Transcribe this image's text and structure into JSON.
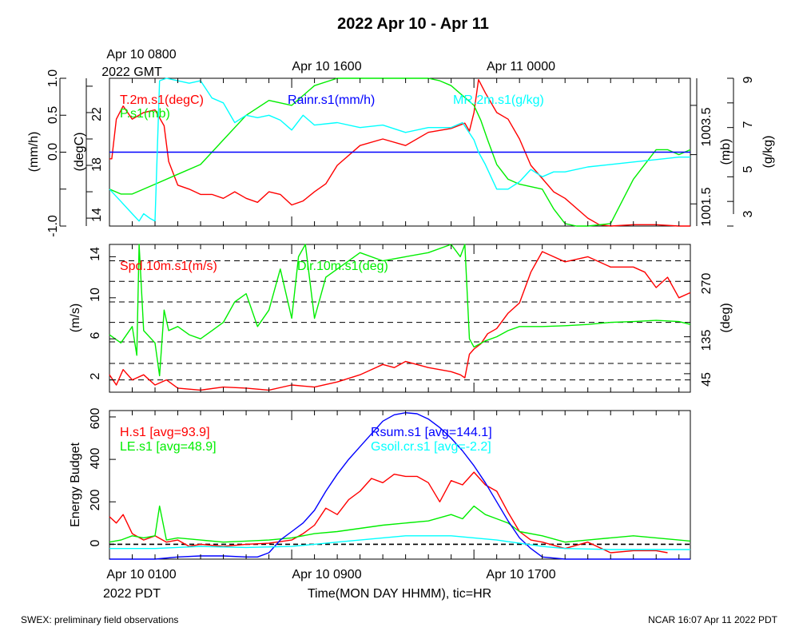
{
  "title": "2022 Apr 10 - Apr 11",
  "footer": {
    "left": "SWEX: preliminary field observations",
    "right": "NCAR 16:07 Apr 11 2022 PDT"
  },
  "gmt_axis": {
    "labels": [
      "Apr 10 0800",
      "Apr 10 1600",
      "Apr 11 0000"
    ],
    "origin_label": "2022 GMT"
  },
  "time_axis": {
    "labels": [
      "Apr 10 0100",
      "Apr 10 0900",
      "Apr 10 1700"
    ],
    "origin_label": "2022 PDT",
    "xlabel": "Time(MON DAY HHMM), tic=HR",
    "x_range_hours": [
      0,
      25.5
    ],
    "major_ticks_hours": [
      0,
      8,
      16
    ],
    "minor_tick_step_hours": 1
  },
  "colors": {
    "red": "#ff0000",
    "green": "#00ee00",
    "cyan": "#00ffff",
    "blue": "#0000ff",
    "black": "#000000"
  },
  "chart_data": [
    {
      "type": "line",
      "panel": "top",
      "xlim": [
        0,
        25.5
      ],
      "axes": {
        "rain": {
          "label": "(mm/h)",
          "side": "left-outer",
          "ylim": [
            -1.0,
            1.0
          ],
          "ticks": [
            "-1.0",
            "0.0",
            "0.5",
            "1.0"
          ]
        },
        "temp": {
          "label": "(degC)",
          "side": "left-inner",
          "ylim": [
            13.4,
            24.6
          ],
          "ticks": [
            "14",
            "18",
            "22"
          ]
        },
        "pres": {
          "label": "(mb)",
          "side": "right-inner",
          "ylim": [
            1001.05,
            1004.05
          ],
          "ticks": [
            "1001.5",
            "1003.5"
          ]
        },
        "mr": {
          "label": "(g/kg)",
          "side": "right-outer",
          "ylim": [
            3.0,
            9.0
          ],
          "ticks": [
            "3",
            "5",
            "7",
            "9"
          ]
        }
      },
      "legend": [
        "T.2m.s1(degC)",
        "P.s1(mb)",
        "Rainr.s1(mm/h)",
        "MR.2m.s1(g/kg)"
      ],
      "series": [
        {
          "name": "T.2m.s1(degC)",
          "color": "red",
          "axis": "temp",
          "x": [
            0,
            0.1,
            0.3,
            0.6,
            1.0,
            1.5,
            2.0,
            2.4,
            2.6,
            3.0,
            3.5,
            4.0,
            4.5,
            5.0,
            5.5,
            6.0,
            6.5,
            7.0,
            7.5,
            8.0,
            8.5,
            9.0,
            9.5,
            10.0,
            11.0,
            12.0,
            13.0,
            14.0,
            15.0,
            15.6,
            15.8,
            16.0,
            16.2,
            16.5,
            17.0,
            17.5,
            18.0,
            18.5,
            19.0,
            19.5,
            20.0,
            21.0,
            21.5,
            22.0,
            23.0,
            24.0,
            25.0,
            25.5
          ],
          "y": [
            18.5,
            18.5,
            21.5,
            22.5,
            21.5,
            22.0,
            22.2,
            21.0,
            18.3,
            16.5,
            16.2,
            15.8,
            15.8,
            15.5,
            16.0,
            15.5,
            15.2,
            16.0,
            15.8,
            15.0,
            15.3,
            16.0,
            16.6,
            18.0,
            19.5,
            20.0,
            19.5,
            20.5,
            20.8,
            21.2,
            20.6,
            22.0,
            24.5,
            23.5,
            22.0,
            21.5,
            20.0,
            18.0,
            17.0,
            16.0,
            15.5,
            14.0,
            13.5,
            13.4,
            13.5,
            13.5,
            13.4,
            13.4
          ]
        },
        {
          "name": "P.s1(mb)",
          "color": "green",
          "axis": "pres",
          "x": [
            0,
            0.5,
            1.0,
            2.0,
            3.0,
            4.0,
            5.0,
            6.0,
            7.0,
            8.0,
            9.0,
            10.0,
            11.0,
            11.5,
            12.0,
            12.5,
            13.0,
            14.0,
            14.5,
            15.0,
            15.5,
            16.0,
            16.3,
            16.6,
            17.0,
            17.5,
            18.0,
            19.0,
            19.5,
            20.0,
            20.5,
            21.0,
            22.0,
            23.0,
            24.0,
            24.5,
            25.0,
            25.5
          ],
          "y": [
            1001.8,
            1001.7,
            1001.7,
            1001.9,
            1002.1,
            1002.3,
            1002.8,
            1003.3,
            1003.6,
            1003.5,
            1003.9,
            1004.2,
            1004.6,
            1005.0,
            1004.7,
            1004.8,
            1004.5,
            1004.2,
            1004.0,
            1003.9,
            1003.7,
            1003.5,
            1003.2,
            1002.8,
            1002.3,
            1002.0,
            1001.9,
            1001.8,
            1001.4,
            1001.1,
            1001.0,
            1000.9,
            1001.1,
            1002.0,
            1002.6,
            1002.6,
            1002.5,
            1002.6
          ]
        },
        {
          "name": "Rainr.s1(mm/h)",
          "color": "blue",
          "axis": "rain",
          "x": [
            0,
            25.5
          ],
          "y": [
            0,
            0
          ]
        },
        {
          "name": "MR.2m.s1(g/kg)",
          "color": "cyan",
          "axis": "mr",
          "x": [
            0,
            0.5,
            1.0,
            1.3,
            1.5,
            1.8,
            2.0,
            2.2,
            2.5,
            3.0,
            3.5,
            4.0,
            4.5,
            5.0,
            5.5,
            6.0,
            6.5,
            7.0,
            7.5,
            8.0,
            8.5,
            9.0,
            10.0,
            11.0,
            12.0,
            13.0,
            14.0,
            15.0,
            15.5,
            16.0,
            16.2,
            16.5,
            17.0,
            17.5,
            18.0,
            18.5,
            19.0,
            19.5,
            20.0,
            21.0,
            22.0,
            23.0,
            24.0,
            25.0,
            25.5
          ],
          "y": [
            4.5,
            4.0,
            3.5,
            3.2,
            3.5,
            3.3,
            3.2,
            8.9,
            9.0,
            8.9,
            8.8,
            8.9,
            8.2,
            8.0,
            7.2,
            7.5,
            7.4,
            7.5,
            7.3,
            6.9,
            7.5,
            7.1,
            7.2,
            7.0,
            7.1,
            6.8,
            7.0,
            7.0,
            7.2,
            6.5,
            6.0,
            5.5,
            4.5,
            4.5,
            4.8,
            5.3,
            5.0,
            5.2,
            5.2,
            5.4,
            5.5,
            5.6,
            5.7,
            5.8,
            5.8
          ]
        }
      ]
    },
    {
      "type": "line",
      "panel": "middle",
      "xlim": [
        0,
        25.5
      ],
      "axes": {
        "spd": {
          "label": "(m/s)",
          "side": "left",
          "ylim": [
            0.8,
            15.2
          ],
          "ticks": [
            "2",
            "6",
            "10",
            "14"
          ]
        },
        "dir": {
          "label": "(deg)",
          "side": "right",
          "ylim": [
            0,
            360
          ],
          "ticks": [
            "45",
            "135",
            "270"
          ]
        }
      },
      "grid_y_spd": [
        2.0,
        3.6,
        5.7,
        7.6,
        9.6,
        11.6,
        13.6
      ],
      "legend": [
        "Spd.10m.s1(m/s)",
        "Dir.10m.s1(deg)"
      ],
      "series": [
        {
          "name": "Spd.10m.s1(m/s)",
          "color": "red",
          "axis": "spd",
          "x": [
            0,
            0.3,
            0.6,
            1.0,
            1.5,
            2.0,
            2.5,
            3.0,
            4.0,
            5.0,
            6.0,
            7.0,
            8.0,
            9.0,
            10.0,
            11.0,
            11.5,
            12.0,
            12.5,
            13.0,
            14.0,
            15.0,
            15.4,
            15.6,
            15.8,
            16.0,
            16.3,
            16.6,
            17.0,
            17.5,
            18.0,
            18.5,
            19.0,
            19.5,
            20.0,
            21.0,
            22.0,
            23.0,
            23.5,
            24.0,
            24.5,
            25.0,
            25.5
          ],
          "y": [
            2.5,
            1.5,
            3.0,
            2.0,
            2.5,
            1.5,
            2.0,
            1.2,
            1.0,
            1.3,
            1.2,
            1.0,
            1.5,
            1.3,
            1.8,
            2.5,
            3.0,
            3.5,
            3.2,
            3.8,
            3.2,
            2.8,
            2.5,
            2.2,
            4.5,
            5.0,
            5.5,
            6.5,
            7.0,
            8.5,
            9.5,
            12.5,
            14.5,
            14.0,
            13.5,
            14.0,
            13.0,
            13.0,
            12.5,
            11.0,
            12.0,
            10.0,
            10.5
          ]
        },
        {
          "name": "Dir.10m.s1(deg)",
          "color": "green",
          "axis": "dir",
          "x": [
            0,
            0.5,
            1.0,
            1.2,
            1.3,
            1.5,
            2.0,
            2.2,
            2.4,
            2.6,
            3.0,
            3.5,
            4.0,
            4.5,
            5.0,
            5.5,
            6.0,
            6.5,
            7.0,
            7.5,
            8.0,
            8.3,
            8.6,
            9.0,
            9.5,
            10.0,
            10.5,
            11.0,
            12.0,
            13.0,
            14.0,
            15.0,
            15.4,
            15.6,
            15.8,
            16.0,
            16.5,
            17.0,
            17.5,
            18.0,
            19.0,
            20.0,
            21.0,
            22.0,
            23.0,
            24.0,
            25.0,
            25.5
          ],
          "y": [
            140,
            120,
            160,
            90,
            360,
            150,
            120,
            40,
            200,
            150,
            160,
            140,
            130,
            150,
            170,
            220,
            240,
            160,
            200,
            300,
            180,
            330,
            360,
            180,
            280,
            300,
            320,
            340,
            320,
            330,
            340,
            360,
            330,
            360,
            130,
            110,
            125,
            135,
            150,
            160,
            160,
            162,
            165,
            170,
            172,
            175,
            172,
            165
          ]
        }
      ]
    },
    {
      "type": "line",
      "panel": "bottom",
      "xlim": [
        0,
        25.5
      ],
      "ylabel": "Energy Budget",
      "ylim": [
        -70,
        630
      ],
      "yticks": [
        0,
        200,
        400,
        600
      ],
      "legend": [
        "H.s1 [avg=93.9]",
        "LE.s1 [avg=48.9]",
        "Rsum.s1 [avg=144.1]",
        "Gsoil.cr.s1 [avg=-2.2]"
      ],
      "series": [
        {
          "name": "H.s1 [avg=93.9]",
          "color": "red",
          "x": [
            0,
            0.3,
            0.6,
            1.0,
            1.5,
            2.0,
            2.5,
            3.0,
            3.5,
            4.0,
            5.0,
            6.0,
            7.0,
            8.0,
            8.5,
            9.0,
            9.5,
            10.0,
            10.5,
            11.0,
            11.5,
            12.0,
            12.5,
            13.0,
            13.5,
            14.0,
            14.5,
            15.0,
            15.5,
            16.0,
            16.5,
            17.0,
            17.5,
            18.0,
            18.5,
            19.0,
            20.0,
            21.0,
            22.0,
            23.0,
            24.0,
            24.5
          ],
          "y": [
            130,
            100,
            140,
            50,
            20,
            40,
            10,
            20,
            -10,
            0,
            -10,
            0,
            5,
            20,
            50,
            90,
            170,
            140,
            210,
            250,
            310,
            290,
            330,
            320,
            320,
            290,
            200,
            300,
            280,
            340,
            280,
            250,
            150,
            60,
            20,
            10,
            -20,
            10,
            -40,
            -30,
            -30,
            -40
          ]
        },
        {
          "name": "LE.s1 [avg=48.9]",
          "color": "green",
          "x": [
            0,
            0.5,
            1.0,
            1.5,
            2.0,
            2.2,
            2.5,
            3.0,
            4.0,
            5.0,
            6.0,
            7.0,
            8.0,
            9.0,
            10.0,
            11.0,
            12.0,
            13.0,
            14.0,
            15.0,
            15.5,
            16.0,
            16.5,
            17.0,
            17.5,
            18.0,
            19.0,
            20.0,
            21.0,
            22.0,
            23.0,
            24.0,
            25.0,
            25.5
          ],
          "y": [
            10,
            20,
            40,
            30,
            40,
            180,
            20,
            30,
            20,
            10,
            15,
            20,
            30,
            50,
            60,
            75,
            90,
            100,
            110,
            140,
            120,
            180,
            140,
            120,
            100,
            60,
            40,
            10,
            20,
            30,
            40,
            30,
            20,
            15
          ]
        },
        {
          "name": "Rsum.s1 [avg=144.1]",
          "color": "blue",
          "x": [
            0,
            1.0,
            2.0,
            3.0,
            4.0,
            5.0,
            6.0,
            6.5,
            7.0,
            7.5,
            8.0,
            8.5,
            9.0,
            9.5,
            10.0,
            10.5,
            11.0,
            11.5,
            12.0,
            12.5,
            13.0,
            13.5,
            14.0,
            14.5,
            15.0,
            15.5,
            16.0,
            16.5,
            17.0,
            17.5,
            18.0,
            18.5,
            19.0,
            20.0,
            21.0,
            22.0,
            23.0,
            24.0,
            25.0,
            25.5
          ],
          "y": [
            -80,
            -80,
            -75,
            -60,
            -55,
            -55,
            -60,
            -60,
            -40,
            20,
            60,
            100,
            160,
            250,
            330,
            400,
            460,
            520,
            580,
            610,
            620,
            615,
            590,
            550,
            500,
            440,
            370,
            290,
            200,
            110,
            30,
            -20,
            -60,
            -80,
            -80,
            -80,
            -80,
            -80,
            -80,
            -80
          ]
        },
        {
          "name": "Gsoil.cr.s1 [avg=-2.2]",
          "color": "cyan",
          "x": [
            0,
            2.0,
            4.0,
            6.0,
            8.0,
            9.0,
            10.0,
            11.0,
            12.0,
            13.0,
            14.0,
            15.0,
            16.0,
            17.0,
            18.0,
            19.0,
            20.0,
            22.0,
            24.0,
            25.5
          ],
          "y": [
            -20,
            -20,
            -10,
            -15,
            -10,
            0,
            10,
            20,
            30,
            40,
            40,
            40,
            30,
            20,
            5,
            -10,
            -20,
            -25,
            -25,
            -25
          ]
        }
      ]
    }
  ]
}
